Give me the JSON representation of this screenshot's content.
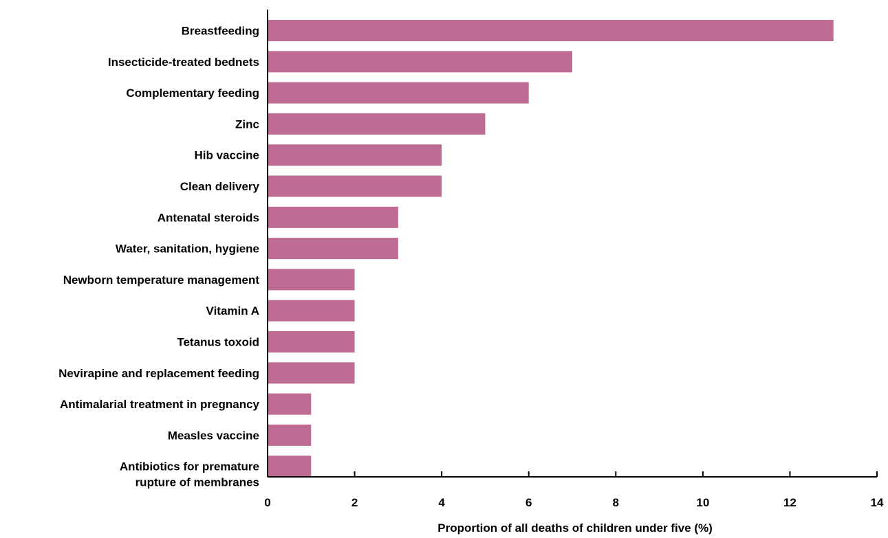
{
  "chart_data": {
    "type": "bar",
    "orientation": "horizontal",
    "categories": [
      "Breastfeeding",
      "Insecticide-treated bednets",
      "Complementary feeding",
      "Zinc",
      "Hib vaccine",
      "Clean delivery",
      "Antenatal steroids",
      "Water, sanitation, hygiene",
      "Newborn temperature management",
      "Vitamin A",
      "Tetanus toxoid",
      "Nevirapine and replacement feeding",
      "Antimalarial treatment in pregnancy",
      "Measles vaccine",
      "Antibiotics for premature\nrupture of membranes"
    ],
    "values": [
      13,
      7,
      6,
      5,
      4,
      4,
      3,
      3,
      2,
      2,
      2,
      2,
      1,
      1,
      1
    ],
    "xlabel": "Proportion of all deaths of children under five (%)",
    "ylabel": "",
    "title": "",
    "xlim": [
      0,
      14
    ],
    "xticks": [
      "0",
      "2",
      "4",
      "6",
      "8",
      "10",
      "12",
      "14"
    ],
    "grid": false,
    "legend": "none",
    "bar_color": "#be6c94",
    "axis_color": "#000000"
  }
}
